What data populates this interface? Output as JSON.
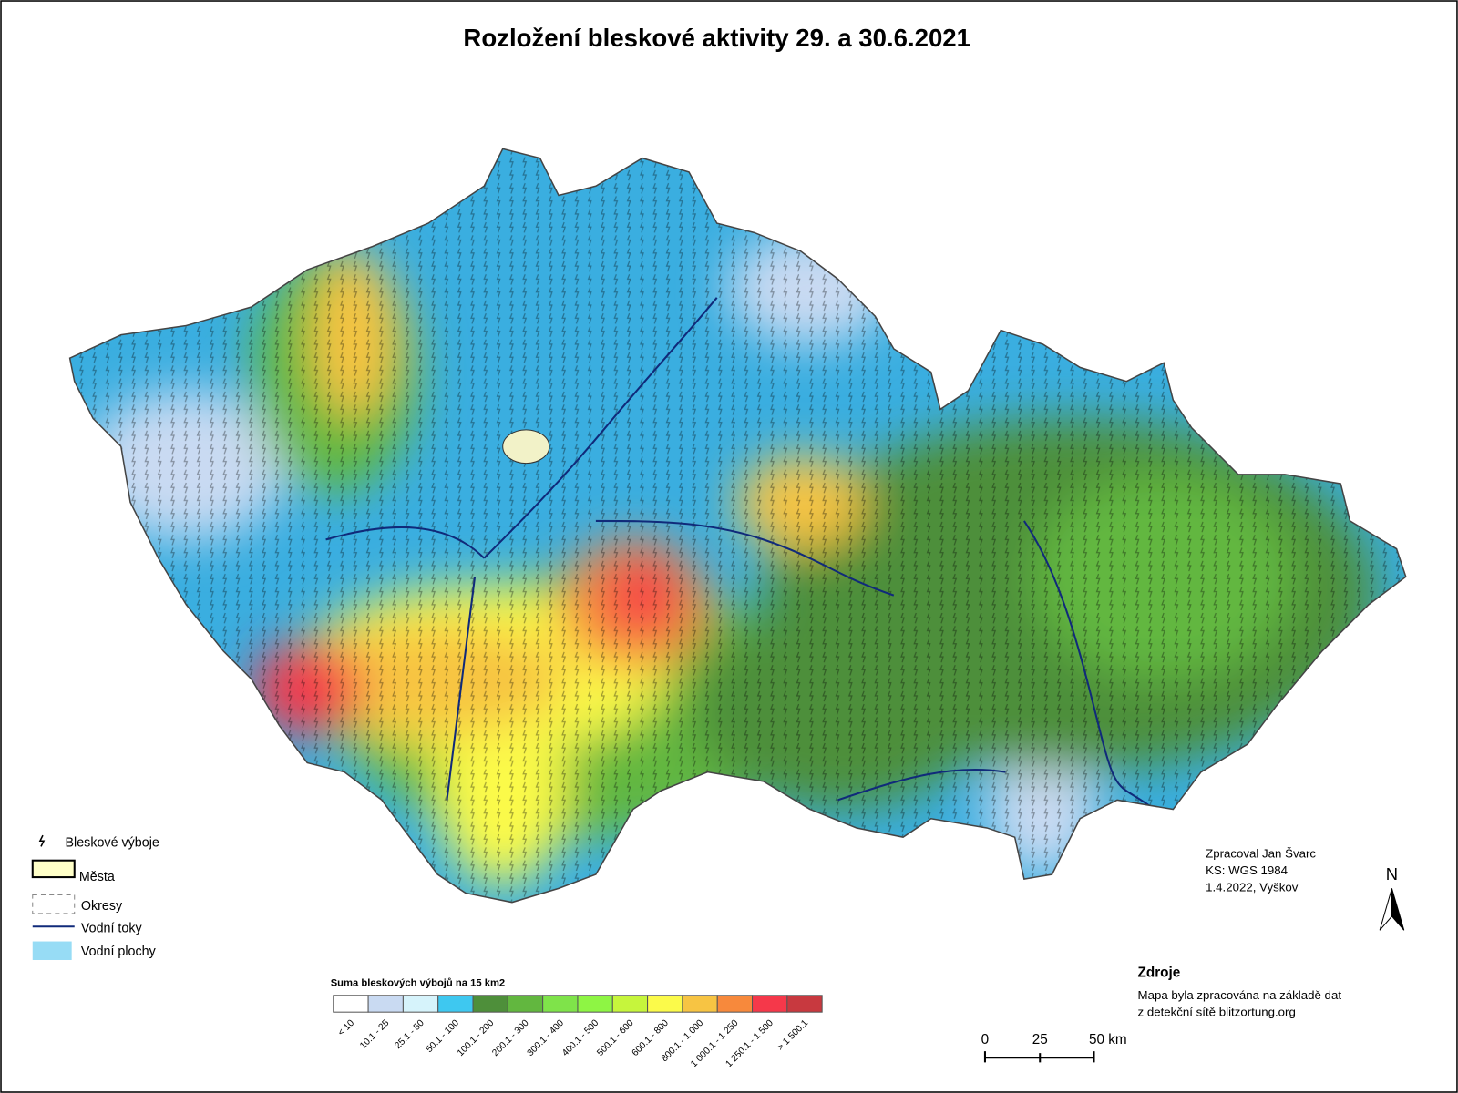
{
  "title": "Rozložení bleskové aktivity 29. a 30.6.2021",
  "legend": {
    "items": [
      "Bleskové výboje",
      "Města",
      "Okresy",
      "Vodní toky",
      "Vodní plochy"
    ]
  },
  "color_scale": {
    "title": "Suma bleskových výbojů na 15 km2",
    "classes": [
      {
        "label": "< 10",
        "color": "#ffffff"
      },
      {
        "label": "10.1 - 25",
        "color": "#c9daf2"
      },
      {
        "label": "25.1 - 50",
        "color": "#d6f3fb"
      },
      {
        "label": "50.1 - 100",
        "color": "#3ec8f0"
      },
      {
        "label": "100.1 - 200",
        "color": "#4e8f3a"
      },
      {
        "label": "200.1 - 300",
        "color": "#62b73f"
      },
      {
        "label": "300.1 - 400",
        "color": "#7fe34a"
      },
      {
        "label": "400.1 - 500",
        "color": "#8ef544"
      },
      {
        "label": "500.1 - 600",
        "color": "#c6f53c"
      },
      {
        "label": "600.1 - 800",
        "color": "#fbfa4a"
      },
      {
        "label": "800.1 - 1 000",
        "color": "#f7c443"
      },
      {
        "label": "1 000.1 - 1 250",
        "color": "#f7893c"
      },
      {
        "label": "1 250.1 - 1 500",
        "color": "#f5384a"
      },
      {
        "label": "> 1 500.1",
        "color": "#c8393f"
      }
    ]
  },
  "credits": [
    "Zpracoval Jan Švarc",
    "KS: WGS 1984",
    "1.4.2022, Vyškov"
  ],
  "north": "N",
  "sources": {
    "title": "Zdroje",
    "lines": [
      "Mapa byla zpracována na základě dat",
      "z detekční sítě blitzortung.org"
    ]
  },
  "scale_bar": [
    "0",
    "25",
    "50 km"
  ]
}
